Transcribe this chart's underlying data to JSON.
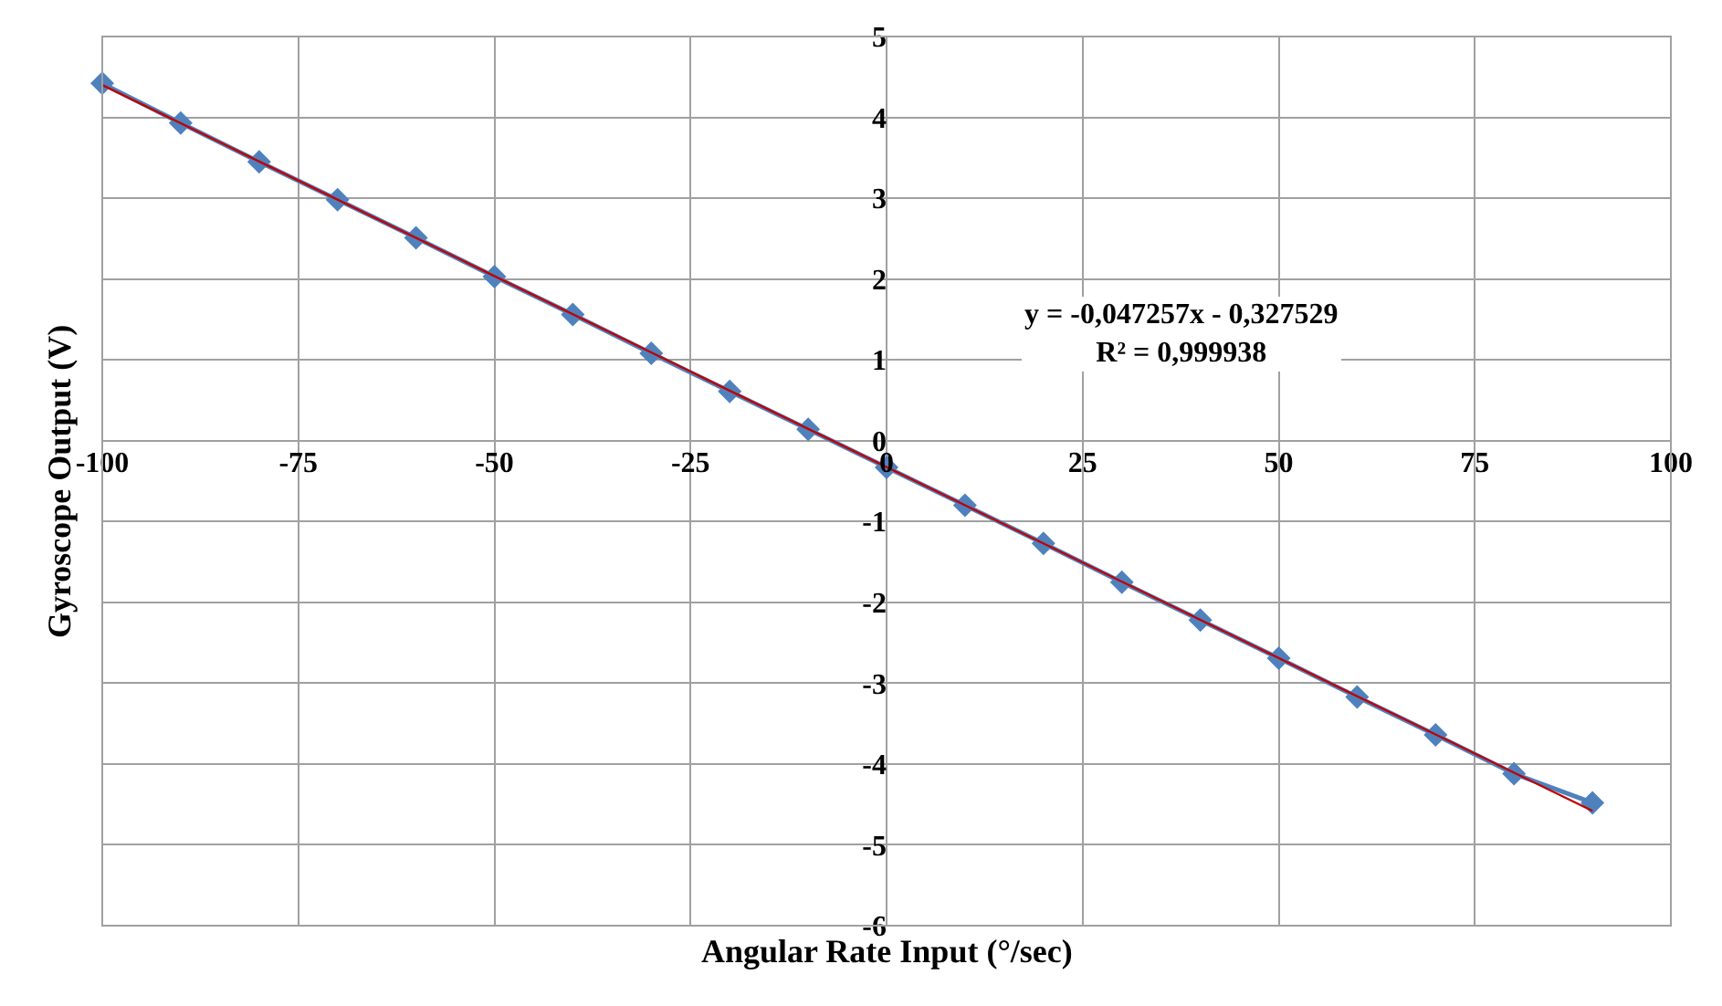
{
  "chart_data": {
    "type": "line",
    "xlabel": "Angular Rate Input (°/sec)",
    "ylabel": "Gyroscope Output (V)",
    "x": [
      -100,
      -90,
      -80,
      -70,
      -60,
      -50,
      -40,
      -30,
      -20,
      -10,
      0,
      10,
      20,
      30,
      40,
      50,
      60,
      70,
      80,
      90
    ],
    "series": [
      {
        "color": "#4f81bd",
        "marker": "diamond",
        "values": [
          4.42,
          3.93,
          3.45,
          2.98,
          2.51,
          2.03,
          1.56,
          1.08,
          0.61,
          0.14,
          -0.33,
          -0.8,
          -1.27,
          -1.75,
          -2.22,
          -2.69,
          -3.17,
          -3.64,
          -4.12,
          -4.48
        ]
      },
      {
        "type": "line",
        "color": "#c00000",
        "marker": "none",
        "x": [
          -100,
          90
        ],
        "values": [
          4.4,
          -4.58
        ]
      }
    ],
    "xlim": [
      -100,
      100
    ],
    "xticks": [
      -100,
      -75,
      -50,
      -25,
      0,
      25,
      50,
      75,
      100
    ],
    "ylim": [
      -6,
      5
    ],
    "yticks": [
      -6,
      -5,
      -4,
      -3,
      -2,
      -1,
      0,
      1,
      2,
      3,
      4,
      5
    ],
    "grid": true,
    "annotations": [
      "y = -0,047257x - 0,327529\nR² = 0,999938"
    ]
  }
}
